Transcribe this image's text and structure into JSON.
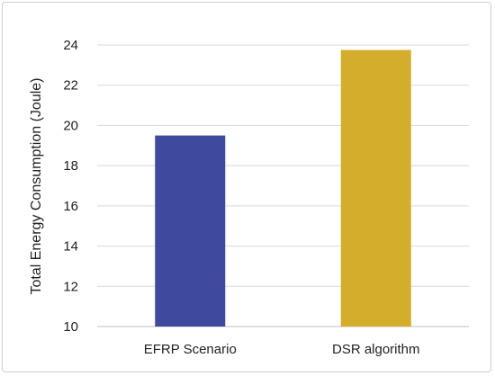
{
  "chart_data": {
    "type": "bar",
    "categories": [
      "EFRP Scenario",
      "DSR algorithm"
    ],
    "values": [
      19.5,
      23.75
    ],
    "colors": [
      "#3f4a9e",
      "#d3ad2b"
    ],
    "title": "",
    "xlabel": "",
    "ylabel": "Total Energy Consumption (Joule)",
    "ylim": [
      10,
      24
    ],
    "yticks": [
      10,
      12,
      14,
      16,
      18,
      20,
      22,
      24
    ],
    "grid": true,
    "legend": "none"
  }
}
